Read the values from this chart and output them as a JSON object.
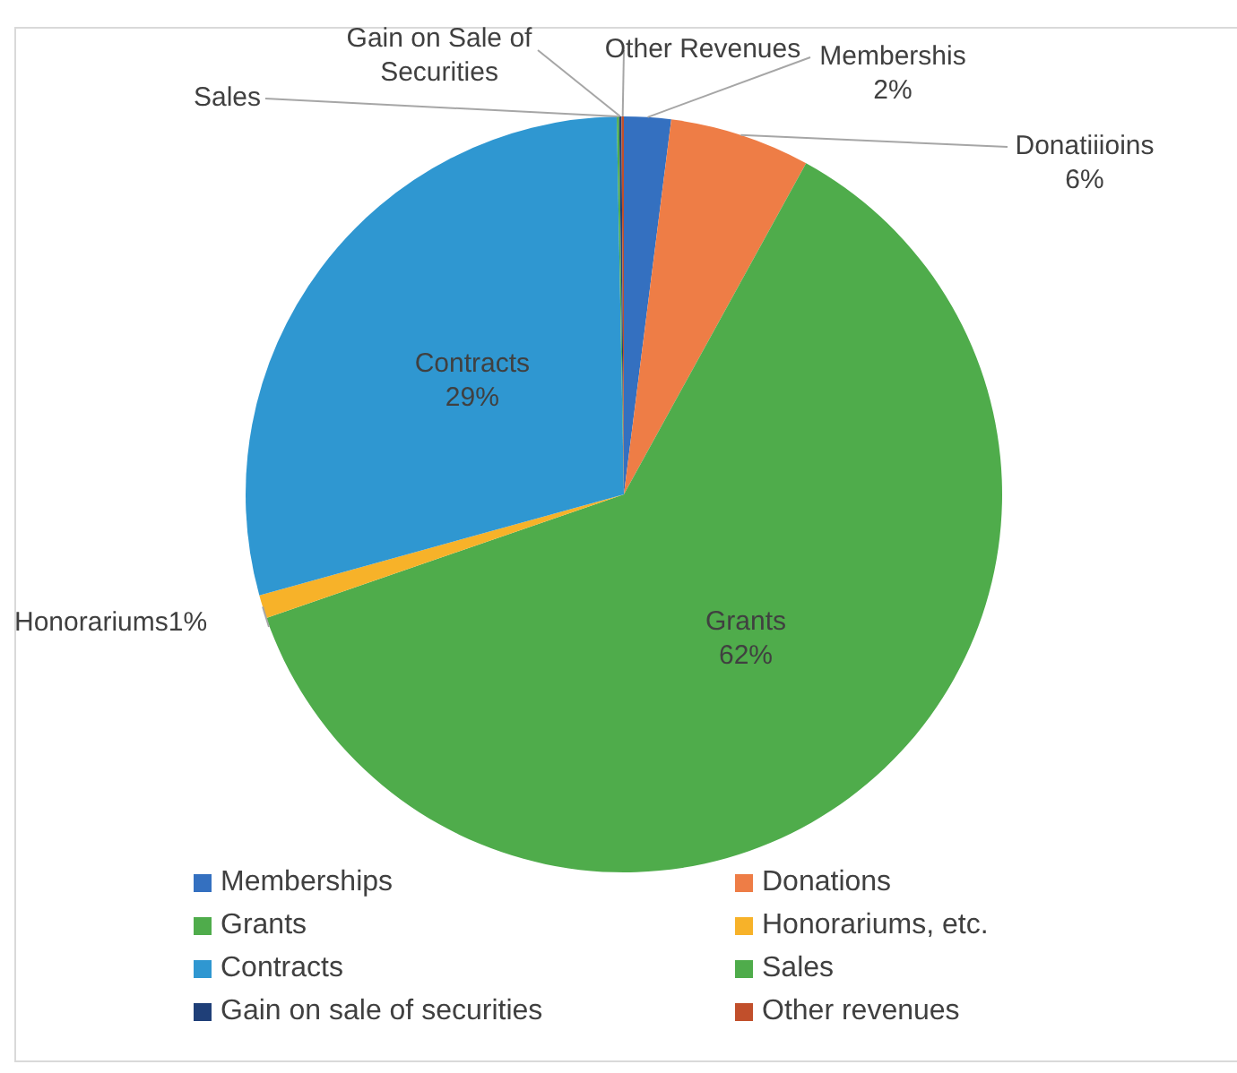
{
  "chart_data": {
    "type": "pie",
    "categories": [
      "Memberships",
      "Donations",
      "Grants",
      "Honorariums, etc.",
      "Contracts",
      "Sales",
      "Gain on sale of securities",
      "Other revenues"
    ],
    "values": [
      2,
      6,
      61.7,
      1,
      29,
      0.1,
      0.1,
      0.1
    ],
    "colors": [
      "#3470c0",
      "#ee7d46",
      "#4fac4b",
      "#f7b229",
      "#2f97d1",
      "#4fac4b",
      "#1f3f78",
      "#c14f2b"
    ],
    "value_labels": [
      "Membershis\n2%",
      "Donatiiioins\n6%",
      "Grants\n62%",
      "Honorariums1%",
      "Contracts\n29%",
      "Sales",
      "Gain on Sale of\nSecurities",
      "Other Revenues"
    ],
    "legend": "bottom"
  }
}
